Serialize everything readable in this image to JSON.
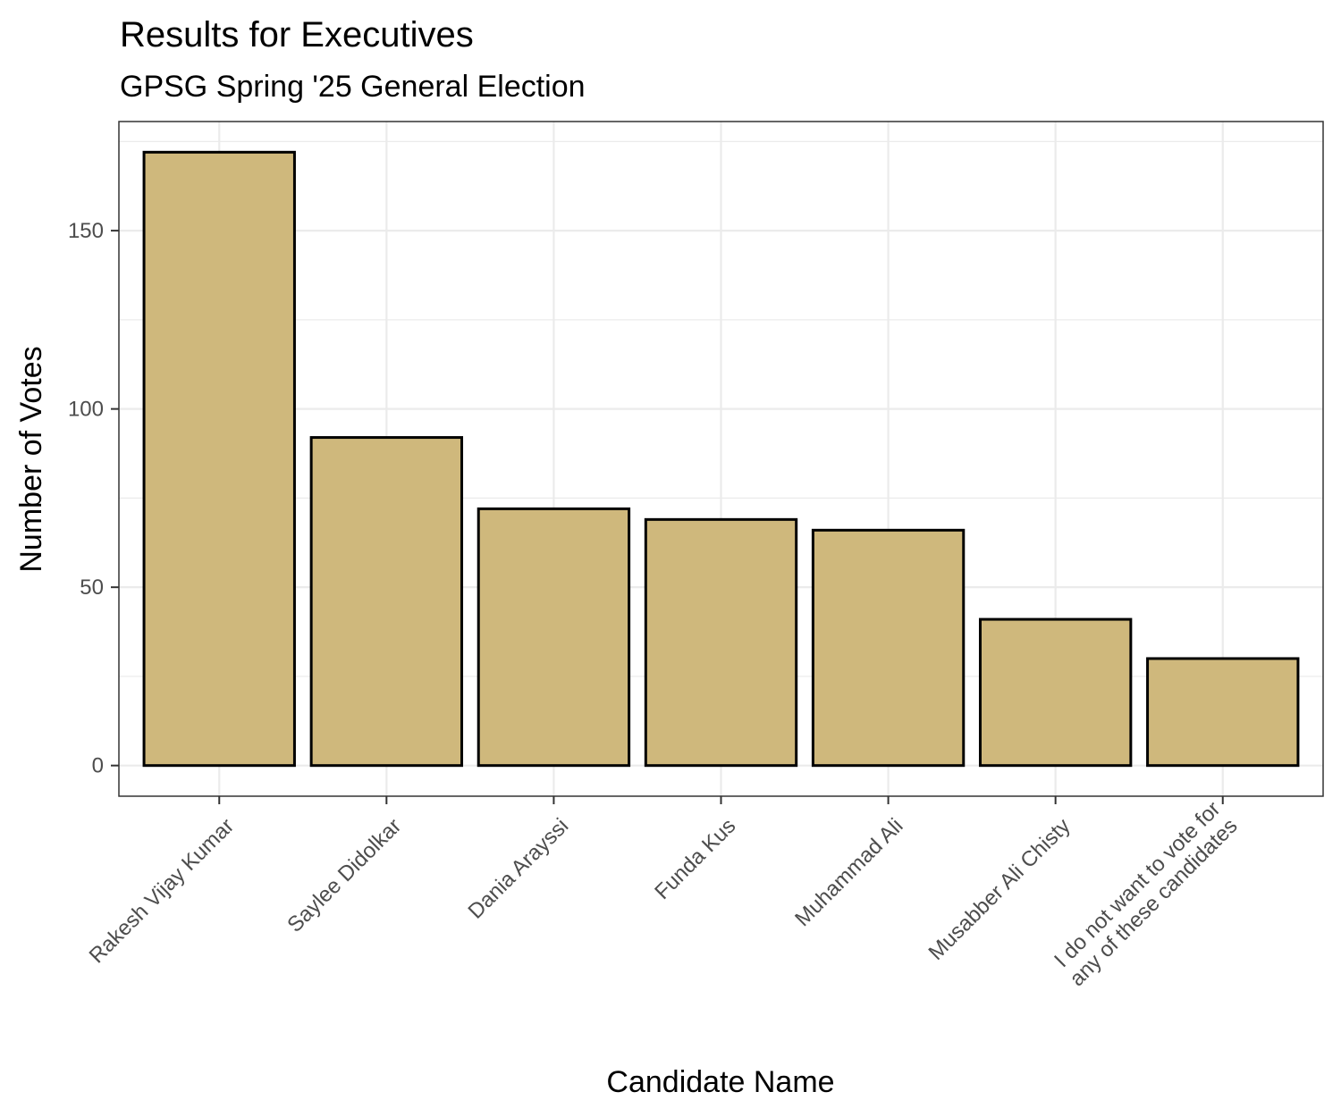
{
  "chart_data": {
    "type": "bar",
    "title": "Results for Executives",
    "subtitle": "GPSG Spring '25 General Election",
    "xlabel": "Candidate Name",
    "ylabel": "Number of Votes",
    "categories": [
      [
        "Rakesh Vijay Kumar"
      ],
      [
        "Saylee Didolkar"
      ],
      [
        "Dania Arayssi"
      ],
      [
        "Funda Kus"
      ],
      [
        "Muhammad Ali"
      ],
      [
        "Musabber Ali Chisty"
      ],
      [
        "I do not want to vote for",
        "any of these candidates"
      ]
    ],
    "values": [
      172,
      92,
      72,
      69,
      66,
      41,
      30
    ],
    "ylim": [
      -8.6,
      180.6
    ],
    "yticks": [
      0,
      50,
      100,
      150
    ],
    "ytick_labels": [
      "0",
      "50",
      "100",
      "150"
    ],
    "grid": true,
    "colors": {
      "bar_fill": "#CFB87C",
      "bar_stroke": "#000000"
    }
  }
}
